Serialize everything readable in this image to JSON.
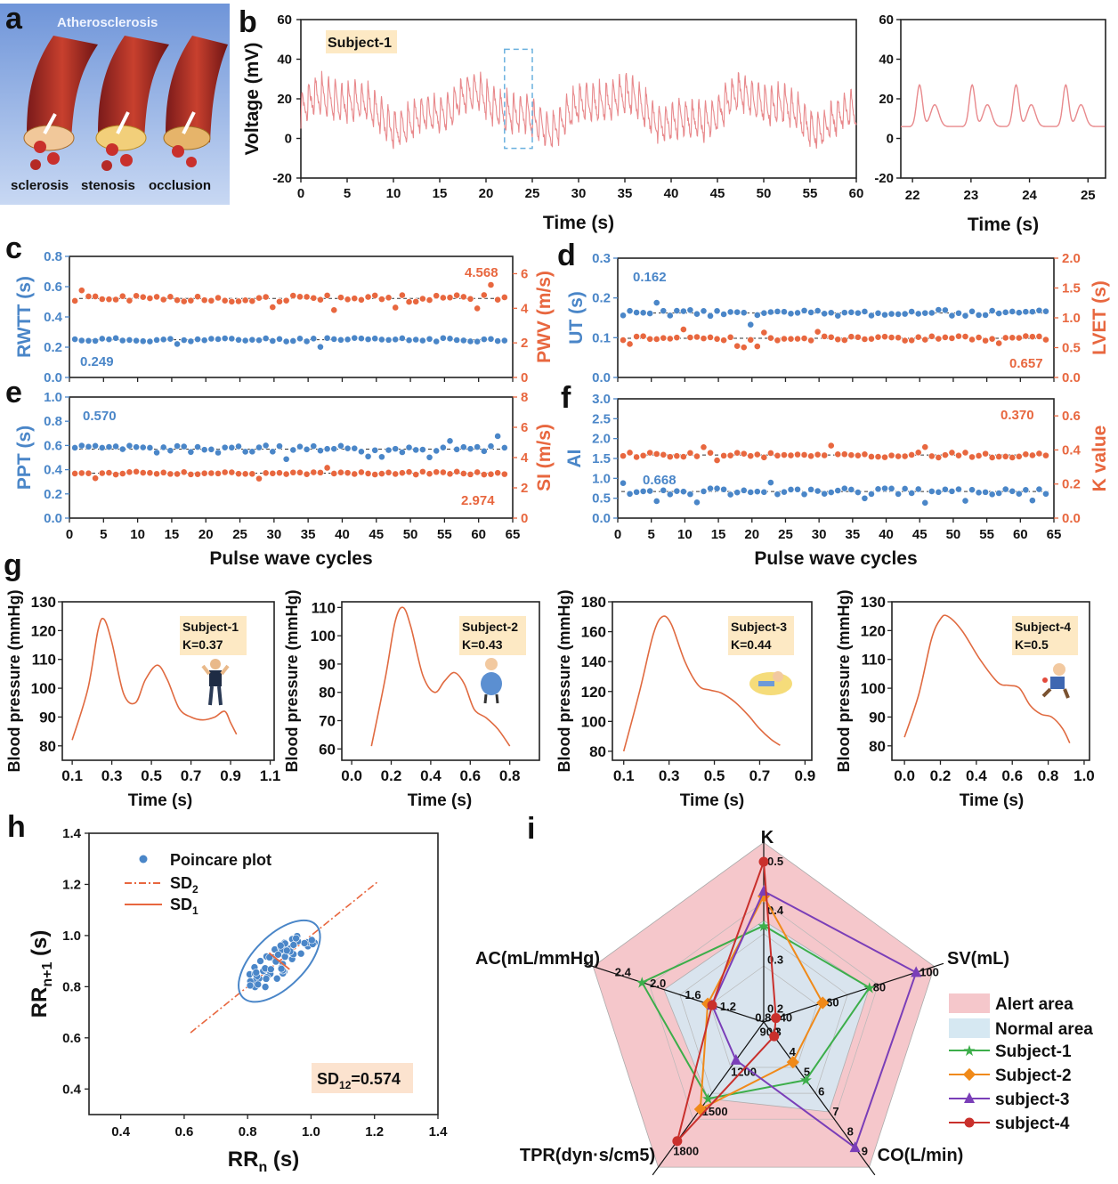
{
  "figure": {
    "panel_letters": [
      "a",
      "b",
      "c",
      "d",
      "e",
      "f",
      "g",
      "h",
      "i"
    ],
    "colors": {
      "pulse": "#e8898c",
      "blue": "#4a86c8",
      "orange": "#e8673f",
      "bp": "#e06a40",
      "alert": "#f5c7cb",
      "normal": "#d6e8f2",
      "subj1": "#3cae4a",
      "subj2": "#f08a1a",
      "subj3": "#7a3eb8",
      "subj4": "#c9302c",
      "label_bg": "#fde9c4"
    }
  },
  "panel_a": {
    "title": "Atherosclerosis",
    "labels": [
      "sclerosis",
      "stenosis",
      "occlusion"
    ]
  },
  "chart_data": [
    {
      "id": "b_main",
      "type": "line",
      "title": "Subject-1",
      "xlabel": "Time (s)",
      "ylabel": "Voltage (mV)",
      "xlim": [
        0,
        60
      ],
      "ylim": [
        -20,
        60
      ],
      "xticks": [
        "0",
        "5",
        "10",
        "15",
        "20",
        "25",
        "30",
        "35",
        "40",
        "45",
        "50",
        "55",
        "60"
      ],
      "yticks": [
        "-20",
        "0",
        "20",
        "40",
        "60"
      ],
      "signal": {
        "beats_per_second": 1.4,
        "baseline": 13,
        "amplitude": 20,
        "note": "continuous pulse waveform, about 84 beats"
      },
      "highlight_window": [
        22,
        25
      ]
    },
    {
      "id": "b_zoom",
      "type": "line",
      "xlabel": "Time (s)",
      "ylabel": "",
      "xlim": [
        21.8,
        25.3
      ],
      "ylim": [
        -20,
        60
      ],
      "xticks": [
        "22",
        "23",
        "24",
        "25"
      ],
      "yticks": [
        "-20",
        "0",
        "20",
        "40",
        "60"
      ],
      "signal": {
        "beat_times": [
          22.05,
          22.95,
          23.7,
          24.55
        ],
        "peak": 25,
        "secondary_peak": 15,
        "trough": 8
      }
    },
    {
      "id": "c",
      "type": "scatter",
      "xlabel": "",
      "ylabel_left": "RWTT (s)",
      "ylabel_right": "PWV (m/s)",
      "xlim": [
        0,
        65
      ],
      "ylim_left": [
        0,
        0.8
      ],
      "ylim_right": [
        0,
        7
      ],
      "xticks": [
        "0",
        "5",
        "10",
        "15",
        "20",
        "25",
        "30",
        "35",
        "40",
        "45",
        "50",
        "55",
        "60",
        "65"
      ],
      "yticks_left": [
        "0.0",
        "0.2",
        "0.4",
        "0.6",
        "0.8"
      ],
      "yticks_right": [
        "0",
        "2",
        "4",
        "6"
      ],
      "series": [
        {
          "name": "RWTT",
          "axis": "left",
          "mean": 0.249,
          "spread": 0.012,
          "label": "0.249"
        },
        {
          "name": "PWV",
          "axis": "right",
          "mean": 4.568,
          "spread": 0.2,
          "label": "4.568"
        }
      ]
    },
    {
      "id": "d",
      "type": "scatter",
      "xlabel": "",
      "ylabel_left": "UT (s)",
      "ylabel_right": "LVET (s)",
      "xlim": [
        0,
        65
      ],
      "ylim_left": [
        0,
        0.3
      ],
      "ylim_right": [
        0,
        2.0
      ],
      "xticks": [
        "0",
        "5",
        "10",
        "15",
        "20",
        "25",
        "30",
        "35",
        "40",
        "45",
        "50",
        "55",
        "60",
        "65"
      ],
      "yticks_left": [
        "0.0",
        "0.1",
        "0.2",
        "0.3"
      ],
      "yticks_right": [
        "0.0",
        "0.5",
        "1.0",
        "1.5",
        "2.0"
      ],
      "series": [
        {
          "name": "UT",
          "axis": "left",
          "mean": 0.162,
          "spread": 0.008,
          "label": "0.162"
        },
        {
          "name": "LVET",
          "axis": "right",
          "mean": 0.657,
          "spread": 0.04,
          "label": "0.657"
        }
      ]
    },
    {
      "id": "e",
      "type": "scatter",
      "xlabel": "",
      "ylabel_left": "PPT (s)",
      "ylabel_right": "SI (m/s)",
      "xlim": [
        0,
        65
      ],
      "ylim_left": [
        0,
        1.0
      ],
      "ylim_right": [
        0,
        8
      ],
      "xticks": [
        "0",
        "5",
        "10",
        "15",
        "20",
        "25",
        "30",
        "35",
        "40",
        "45",
        "50",
        "55",
        "60",
        "65"
      ],
      "yticks_left": [
        "0.0",
        "0.2",
        "0.4",
        "0.6",
        "0.8",
        "1.0"
      ],
      "yticks_right": [
        "0",
        "2",
        "4",
        "6",
        "8"
      ],
      "series": [
        {
          "name": "PPT",
          "axis": "left",
          "mean": 0.57,
          "spread": 0.03,
          "label": "0.570"
        },
        {
          "name": "SI",
          "axis": "right",
          "mean": 2.974,
          "spread": 0.1,
          "label": "2.974"
        }
      ]
    },
    {
      "id": "f",
      "type": "scatter",
      "xlabel": "Pulse wave cycles",
      "ylabel_left": "AI",
      "ylabel_right": "K value",
      "xlim": [
        0,
        65
      ],
      "ylim_left": [
        0,
        3.0
      ],
      "ylim_right": [
        0,
        0.7
      ],
      "xticks": [
        "0",
        "5",
        "10",
        "15",
        "20",
        "25",
        "30",
        "35",
        "40",
        "45",
        "50",
        "55",
        "60",
        "65"
      ],
      "yticks_left": [
        "0.0",
        "0.5",
        "1.0",
        "1.5",
        "2.0",
        "2.5",
        "3.0"
      ],
      "yticks_right": [
        "0.0",
        "0.2",
        "0.4",
        "0.6"
      ],
      "series": [
        {
          "name": "AI",
          "axis": "left",
          "mean": 0.668,
          "spread": 0.08,
          "label": "0.668"
        },
        {
          "name": "K value",
          "axis": "right",
          "mean": 0.37,
          "spread": 0.015,
          "label": "0.370"
        }
      ]
    },
    {
      "id": "g1",
      "type": "line",
      "subject": "Subject-1",
      "k_label": "K=0.37",
      "xlabel": "Time (s)",
      "ylabel": "Blood pressure (mmHg)",
      "xlim": [
        0.05,
        1.12
      ],
      "ylim": [
        75,
        130
      ],
      "xticks": [
        0.1,
        0.3,
        0.5,
        0.7,
        0.9,
        1.1
      ],
      "xtick_labels": [
        "0.1",
        "0.3",
        "0.5",
        "0.7",
        "0.9",
        "1.1"
      ],
      "yticks": [
        80,
        90,
        100,
        110,
        120,
        130
      ],
      "ytick_labels": [
        "80",
        "90",
        "100",
        "110",
        "120",
        "130"
      ],
      "x": [
        0.1,
        0.18,
        0.23,
        0.26,
        0.3,
        0.36,
        0.42,
        0.47,
        0.53,
        0.58,
        0.64,
        0.7,
        0.76,
        0.82,
        0.87,
        0.9,
        0.93
      ],
      "y": [
        82,
        100,
        120,
        124,
        116,
        98,
        95,
        103,
        108,
        103,
        93,
        90,
        89,
        90,
        92,
        88,
        84
      ]
    },
    {
      "id": "g2",
      "type": "line",
      "subject": "Subject-2",
      "k_label": "K=0.43",
      "xlabel": "Time (s)",
      "ylabel": "Blood pressure (mmHg)",
      "xlim": [
        -0.05,
        0.95
      ],
      "ylim": [
        56,
        112
      ],
      "xticks": [
        0,
        0.2,
        0.4,
        0.6,
        0.8
      ],
      "xtick_labels": [
        "0.0",
        "0.2",
        "0.4",
        "0.6",
        "0.8"
      ],
      "yticks": [
        60,
        70,
        80,
        90,
        100,
        110
      ],
      "ytick_labels": [
        "60",
        "70",
        "80",
        "90",
        "100",
        "110"
      ],
      "x": [
        0.1,
        0.17,
        0.22,
        0.26,
        0.3,
        0.36,
        0.42,
        0.47,
        0.52,
        0.57,
        0.62,
        0.68,
        0.74,
        0.8
      ],
      "y": [
        61,
        85,
        105,
        110,
        103,
        86,
        80,
        84,
        87,
        83,
        74,
        71,
        67,
        61
      ]
    },
    {
      "id": "g3",
      "type": "line",
      "subject": "Subject-3",
      "k_label": "K=0.44",
      "xlabel": "Time (s)",
      "ylabel": "Blood pressure (mmHg)",
      "xlim": [
        0.05,
        0.93
      ],
      "ylim": [
        74,
        180
      ],
      "xticks": [
        0.1,
        0.3,
        0.5,
        0.7,
        0.9
      ],
      "xtick_labels": [
        "0.1",
        "0.3",
        "0.5",
        "0.7",
        "0.9"
      ],
      "yticks": [
        80,
        100,
        120,
        140,
        160,
        180
      ],
      "ytick_labels": [
        "80",
        "100",
        "120",
        "140",
        "160",
        "180"
      ],
      "x": [
        0.1,
        0.17,
        0.23,
        0.27,
        0.31,
        0.37,
        0.43,
        0.48,
        0.53,
        0.59,
        0.65,
        0.7,
        0.75,
        0.79
      ],
      "y": [
        80,
        120,
        158,
        170,
        165,
        140,
        124,
        121,
        119,
        113,
        104,
        95,
        88,
        84
      ]
    },
    {
      "id": "g4",
      "type": "line",
      "subject": "Subject-4",
      "k_label": "K=0.5",
      "xlabel": "Time (s)",
      "ylabel": "Blood pressure (mmHg)",
      "xlim": [
        -0.07,
        1.03
      ],
      "ylim": [
        75,
        130
      ],
      "xticks": [
        0,
        0.2,
        0.4,
        0.6,
        0.8,
        1.0
      ],
      "xtick_labels": [
        "0.0",
        "0.2",
        "0.4",
        "0.6",
        "0.8",
        "1.0"
      ],
      "yticks": [
        80,
        90,
        100,
        110,
        120,
        130
      ],
      "ytick_labels": [
        "80",
        "90",
        "100",
        "110",
        "120",
        "130"
      ],
      "x": [
        0,
        0.08,
        0.15,
        0.2,
        0.24,
        0.32,
        0.42,
        0.52,
        0.58,
        0.64,
        0.7,
        0.76,
        0.82,
        0.88,
        0.92
      ],
      "y": [
        83,
        98,
        117,
        124,
        125,
        120,
        110,
        102,
        101,
        100,
        94,
        91,
        90,
        86,
        81
      ]
    },
    {
      "id": "h",
      "type": "scatter",
      "xlabel": "RR",
      "xlabel_sub": "n",
      "xlabel_suffix": " (s)",
      "ylabel": "RR",
      "ylabel_sub": "n+1",
      "ylabel_suffix": " (s)",
      "xlim": [
        0.3,
        1.4
      ],
      "ylim": [
        0.3,
        1.4
      ],
      "xticks": [
        0.4,
        0.6,
        0.8,
        1.0,
        1.2,
        1.4
      ],
      "xtick_labels": [
        "0.4",
        "0.6",
        "0.8",
        "1.0",
        "1.2",
        "1.4"
      ],
      "yticks": [
        0.4,
        0.6,
        0.8,
        1.0,
        1.2,
        1.4
      ],
      "ytick_labels": [
        "0.4",
        "0.6",
        "0.8",
        "1.0",
        "1.2",
        "1.4"
      ],
      "center": [
        0.9,
        0.9
      ],
      "sd1": 0.035,
      "sd2": 0.13,
      "n_points": 60,
      "identity_line": [
        0.62,
        1.21
      ],
      "legend": [
        "Poincare plot",
        "SD",
        "SD"
      ],
      "legend_subs": [
        "",
        "2",
        "1"
      ],
      "annotation": "SD",
      "annotation_sub": "12",
      "annotation_suffix": "=0.574"
    },
    {
      "id": "i",
      "type": "radar",
      "axes": [
        {
          "name": "K",
          "min": 0.2,
          "max": 0.5,
          "ticks": [
            "0.2",
            "0.3",
            "0.4",
            "0.5"
          ]
        },
        {
          "name": "SV(mL)",
          "min": 40,
          "max": 100,
          "ticks": [
            "40",
            "60",
            "80",
            "100"
          ]
        },
        {
          "name": "CO(L/min)",
          "min": 3,
          "max": 9,
          "ticks": [
            "3",
            "4",
            "5",
            "6",
            "7",
            "8",
            "9"
          ]
        },
        {
          "name": "TPR(dyn·s/cm5)",
          "min": 900,
          "max": 1800,
          "ticks": [
            "900",
            "1200",
            "1500",
            "1800"
          ]
        },
        {
          "name": "AC(mL/mmHg)",
          "min": 0.8,
          "max": 2.4,
          "ticks": [
            "0.8",
            "1.2",
            "1.6",
            "2.0",
            "2.4"
          ]
        }
      ],
      "alert_area": [
        0.5,
        100,
        9,
        1800,
        2.4
      ],
      "normal_area": [
        0.38,
        80,
        7,
        1400,
        1.8
      ],
      "series": [
        {
          "name": "Subject-1",
          "values": [
            0.37,
            80,
            5.4,
            1400,
            2.05
          ]
        },
        {
          "name": "Subject-2",
          "values": [
            0.43,
            60,
            4.5,
            1480,
            1.3
          ]
        },
        {
          "name": "subject-3",
          "values": [
            0.44,
            100,
            8.8,
            1110,
            1.25
          ]
        },
        {
          "name": "subject-4",
          "values": [
            0.5,
            40,
            3.2,
            1720,
            1.25
          ]
        }
      ],
      "legend": [
        "Alert area",
        "Normal area",
        "Subject-1",
        "Subject-2",
        "subject-3",
        "subject-4"
      ]
    }
  ]
}
